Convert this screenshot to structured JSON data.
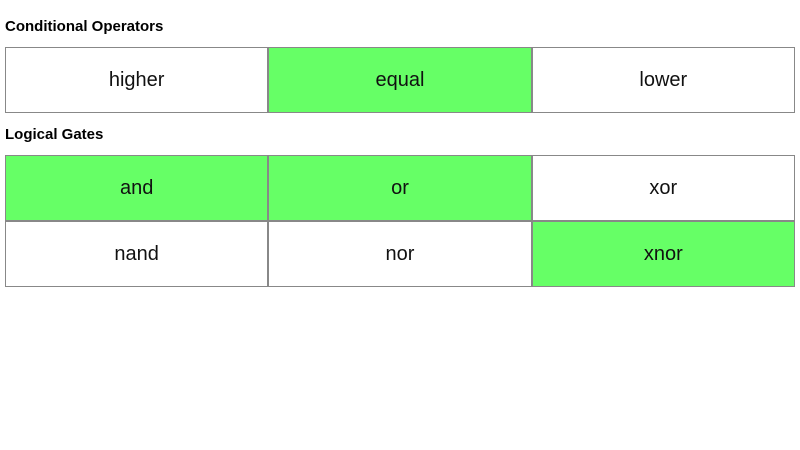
{
  "sections": [
    {
      "title": "Conditional Operators",
      "buttons": [
        {
          "label": "higher",
          "active": false
        },
        {
          "label": "equal",
          "active": true
        },
        {
          "label": "lower",
          "active": false
        }
      ]
    },
    {
      "title": "Logical Gates",
      "buttons": [
        {
          "label": "and",
          "active": true
        },
        {
          "label": "or",
          "active": true
        },
        {
          "label": "xor",
          "active": false
        },
        {
          "label": "nand",
          "active": false
        },
        {
          "label": "nor",
          "active": false
        },
        {
          "label": "xnor",
          "active": true
        }
      ]
    }
  ],
  "colors": {
    "active": "#66ff66",
    "inactive": "#ffffff",
    "border": "#888888"
  }
}
